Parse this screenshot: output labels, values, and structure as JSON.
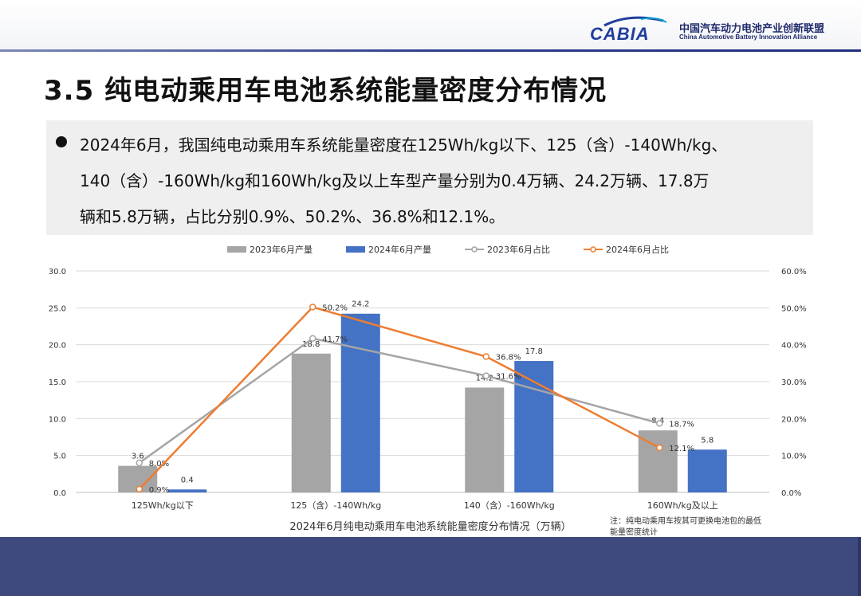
{
  "header": {
    "logo_wordmark": "CABIA",
    "logo_cn": "中国汽车动力电池产业创新联盟",
    "logo_en": "China Automotive Battery Innovation Alliance"
  },
  "page_title": "3.5 纯电动乘用车电池系统能量密度分布情况",
  "bullet_text": "2024年6月，我国纯电动乘用车系统能量密度在125Wh/kg以下、125（含）-140Wh/kg、\n140（含）-160Wh/kg和160Wh/kg及以上车型产量分别为0.4万辆、24.2万辆、17.8万\n辆和5.8万辆，占比分别0.9%、50.2%、36.8%和12.1%。",
  "chart_data": {
    "type": "bar",
    "title": "2024年6月纯电动乘用车电池系统能量密度分布情况（万辆）",
    "note": "注：纯电动乘用车按其可更换电池包的最低能量密度统计",
    "categories": [
      "125Wh/kg以下",
      "125（含）-140Wh/kg",
      "140（含）-160Wh/kg",
      "160Wh/kg及以上"
    ],
    "series": [
      {
        "name": "2023年6月产量",
        "kind": "bar",
        "axis": "left",
        "color": "#a5a5a5",
        "values": [
          3.6,
          18.8,
          14.2,
          8.4
        ],
        "labels": [
          "3.6",
          "18.8",
          "14.2",
          "8.4"
        ]
      },
      {
        "name": "2024年6月产量",
        "kind": "bar",
        "axis": "left",
        "color": "#4472c4",
        "values": [
          0.4,
          24.2,
          17.8,
          5.8
        ],
        "labels": [
          "0.4",
          "24.2",
          "17.8",
          "5.8"
        ]
      },
      {
        "name": "2023年6月占比",
        "kind": "line",
        "axis": "right",
        "color": "#a5a5a5",
        "values": [
          8.0,
          41.7,
          31.6,
          18.7
        ],
        "labels": [
          "8.0%",
          "41.7%",
          "31.6%",
          "18.7%"
        ]
      },
      {
        "name": "2024年6月占比",
        "kind": "line",
        "axis": "right",
        "color": "#ed7d31",
        "values": [
          0.9,
          50.2,
          36.8,
          12.1
        ],
        "labels": [
          "0.9%",
          "50.2%",
          "36.8%",
          "12.1%"
        ]
      }
    ],
    "ylim_left": [
      0,
      30
    ],
    "ylim_right": [
      0,
      60
    ],
    "yticks_left": [
      "0.0",
      "5.0",
      "10.0",
      "15.0",
      "20.0",
      "25.0",
      "30.0"
    ],
    "yticks_right": [
      "0.0%",
      "10.0%",
      "20.0%",
      "30.0%",
      "40.0%",
      "50.0%",
      "60.0%"
    ],
    "grid": true,
    "legend_position": "top"
  }
}
